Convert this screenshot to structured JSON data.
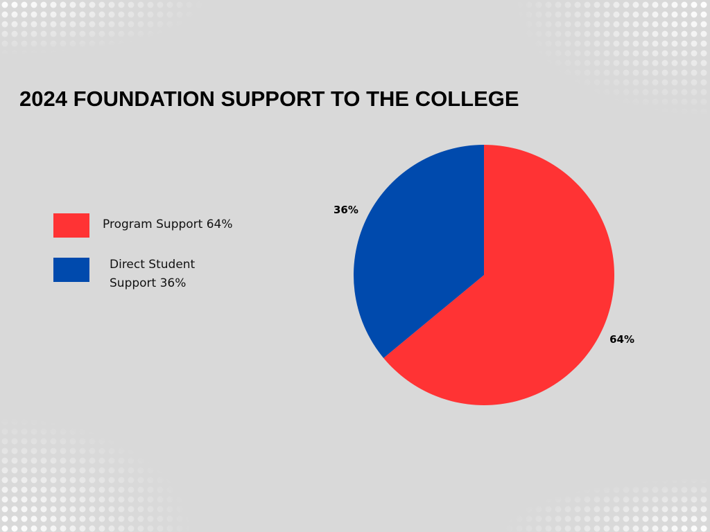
{
  "chart_data": {
    "type": "pie",
    "title": "2024 FOUNDATION SUPPORT TO THE COLLEGE",
    "categories": [
      "Program Support 64%",
      "Direct Student Support 36%"
    ],
    "values": [
      64,
      36
    ],
    "value_labels": [
      "64%",
      "36%"
    ],
    "colors": [
      "#ff3334",
      "#004aad"
    ]
  }
}
